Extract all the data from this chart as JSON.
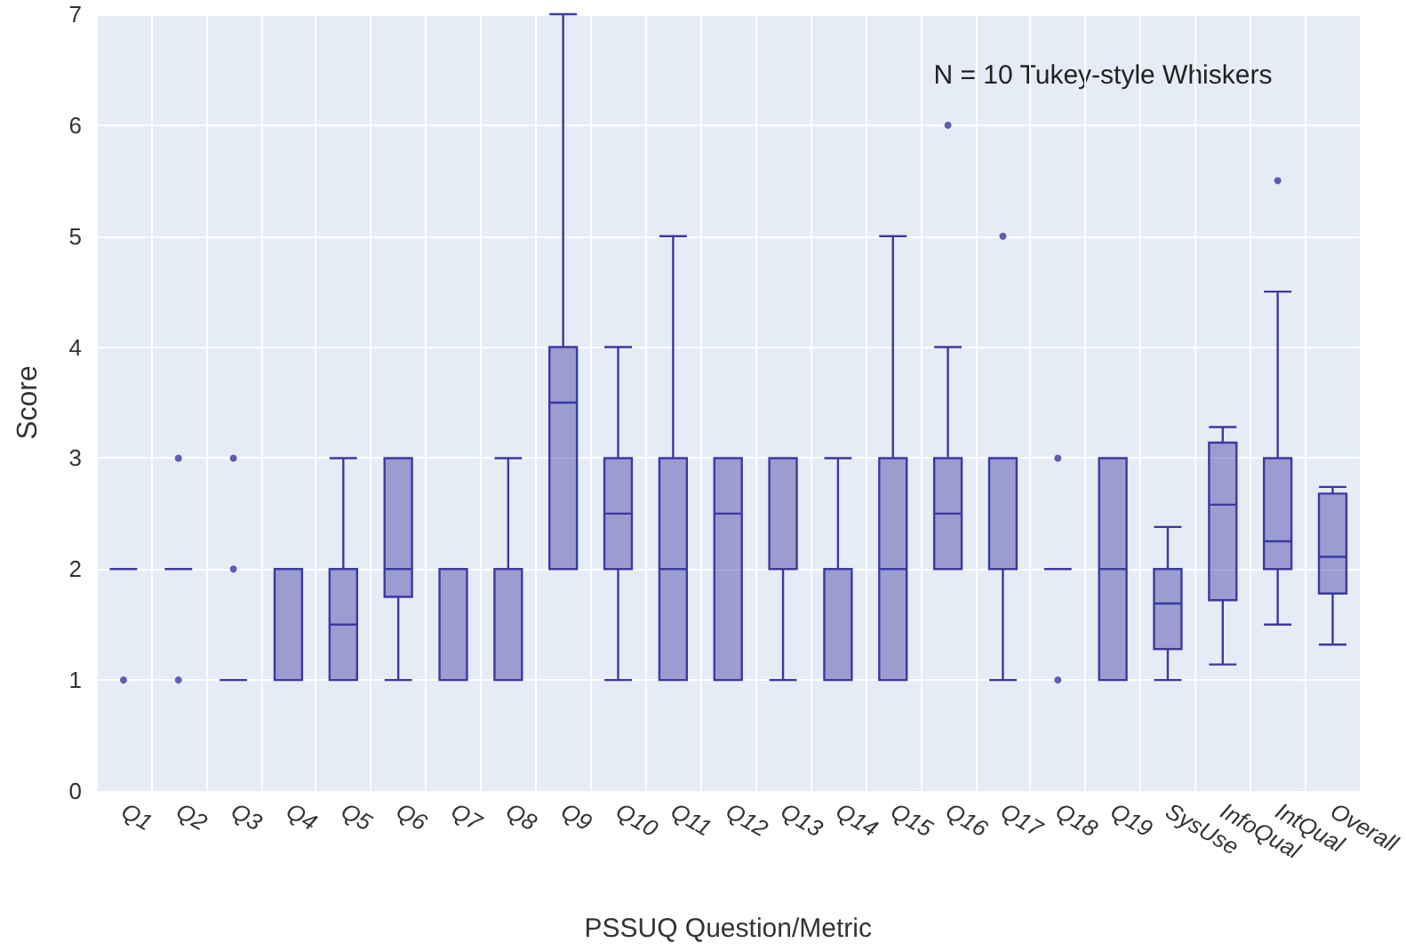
{
  "chart_data": {
    "type": "box",
    "xlabel": "PSSUQ Question/Metric",
    "ylabel": "Score",
    "annotations": [
      "N = 10 Tukey-style Whiskers"
    ],
    "categories": [
      "Q1",
      "Q2",
      "Q3",
      "Q4",
      "Q5",
      "Q6",
      "Q7",
      "Q8",
      "Q9",
      "Q10",
      "Q11",
      "Q12",
      "Q13",
      "Q14",
      "Q15",
      "Q16",
      "Q17",
      "Q18",
      "Q19",
      "SysUse",
      "InfoQual",
      "IntQual",
      "Overall"
    ],
    "color": "#3a3aa0",
    "boxes": [
      {
        "low": 2,
        "q1": 2,
        "median": 2,
        "q3": 2,
        "high": 2,
        "outliers": [
          1
        ]
      },
      {
        "low": 2,
        "q1": 2,
        "median": 2,
        "q3": 2,
        "high": 2,
        "outliers": [
          1,
          3
        ]
      },
      {
        "low": 1,
        "q1": 1,
        "median": 1,
        "q3": 1,
        "high": 1,
        "outliers": [
          2,
          3
        ]
      },
      {
        "low": 1,
        "q1": 1,
        "median": 1,
        "q3": 2,
        "high": 2
      },
      {
        "low": 1,
        "q1": 1,
        "median": 1.5,
        "q3": 2,
        "high": 3
      },
      {
        "low": 1,
        "q1": 1.75,
        "median": 2,
        "q3": 3,
        "high": 3
      },
      {
        "low": 1,
        "q1": 1,
        "median": 2,
        "q3": 2,
        "high": 2
      },
      {
        "low": 1,
        "q1": 1,
        "median": 2,
        "q3": 2,
        "high": 3
      },
      {
        "low": 2,
        "q1": 2,
        "median": 3.5,
        "q3": 4,
        "high": 7
      },
      {
        "low": 1,
        "q1": 2,
        "median": 2.5,
        "q3": 3,
        "high": 4
      },
      {
        "low": 1,
        "q1": 1,
        "median": 2,
        "q3": 3,
        "high": 5
      },
      {
        "low": 1,
        "q1": 1,
        "median": 2.5,
        "q3": 3,
        "high": 3
      },
      {
        "low": 1,
        "q1": 2,
        "median": 3,
        "q3": 3,
        "high": 3
      },
      {
        "low": 1,
        "q1": 1,
        "median": 2,
        "q3": 2,
        "high": 3
      },
      {
        "low": 1,
        "q1": 1,
        "median": 2,
        "q3": 3,
        "high": 5
      },
      {
        "low": 2,
        "q1": 2,
        "median": 2.5,
        "q3": 3,
        "high": 4,
        "outliers": [
          6
        ]
      },
      {
        "low": 1,
        "q1": 2,
        "median": 3,
        "q3": 3,
        "high": 3,
        "outliers": [
          5
        ]
      },
      {
        "low": 2,
        "q1": 2,
        "median": 2,
        "q3": 2,
        "high": 2,
        "outliers": [
          1,
          3
        ]
      },
      {
        "low": 1,
        "q1": 1,
        "median": 2,
        "q3": 3,
        "high": 3
      },
      {
        "low": 1,
        "q1": 1.28,
        "median": 1.69,
        "q3": 2,
        "high": 2.38
      },
      {
        "low": 1.14,
        "q1": 1.72,
        "median": 2.58,
        "q3": 3.14,
        "high": 3.28
      },
      {
        "low": 1.5,
        "q1": 2,
        "median": 2.25,
        "q3": 3,
        "high": 4.5,
        "outliers": [
          5.5
        ]
      },
      {
        "low": 1.32,
        "q1": 1.78,
        "median": 2.11,
        "q3": 2.68,
        "high": 2.74
      }
    ],
    "ylim": [
      0,
      7
    ],
    "yticks": [
      0,
      1,
      2,
      3,
      4,
      5,
      6,
      7
    ],
    "grid": true
  }
}
